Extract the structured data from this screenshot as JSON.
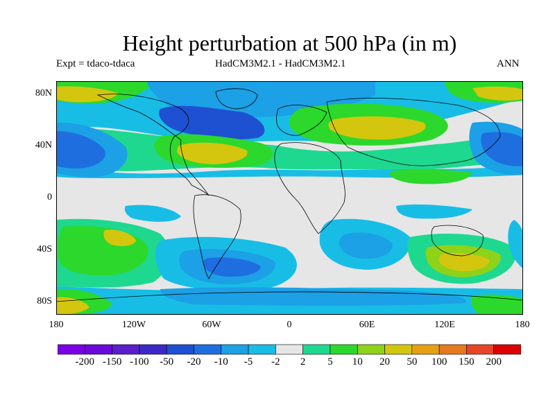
{
  "title": "Height perturbation at 500 hPa (in m)",
  "subtitle_left": "Expt = tdaco-tdaca",
  "subtitle_center": "HadCM3M2.1 - HadCM3M2.1",
  "subtitle_right": "ANN",
  "lat_ticks": [
    "80N",
    "40N",
    "0",
    "40S",
    "80S"
  ],
  "lon_ticks": [
    "180",
    "120W",
    "60W",
    "0",
    "60E",
    "120E",
    "180"
  ],
  "colorbar": {
    "labels": [
      "-200",
      "-150",
      "-100",
      "-50",
      "-20",
      "-10",
      "-5",
      "-2",
      "2",
      "5",
      "10",
      "20",
      "50",
      "100",
      "150",
      "200"
    ],
    "colors": [
      "#7a00e6",
      "#6a0ad8",
      "#5a1ecc",
      "#3c28c8",
      "#1e50d2",
      "#1f6ee0",
      "#1ca0e6",
      "#18bde6",
      "#e6e6e6",
      "#1ed890",
      "#2cd82c",
      "#8ed21a",
      "#d4c60e",
      "#e6a014",
      "#e6781e",
      "#e64628",
      "#dc0000"
    ]
  }
}
